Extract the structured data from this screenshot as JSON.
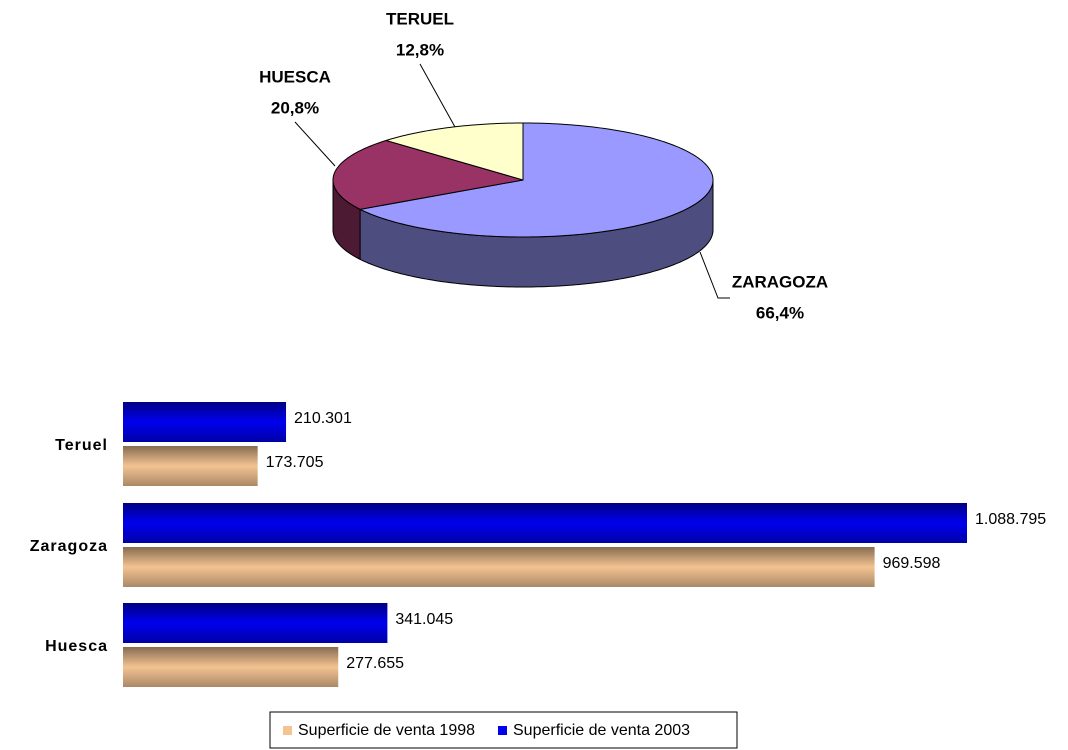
{
  "chart_data": [
    {
      "type": "pie",
      "categories": [
        "ZARAGOZA",
        "HUESCA",
        "TERUEL"
      ],
      "values": [
        66.4,
        20.8,
        12.8
      ],
      "value_labels": [
        "66,4%",
        "20,8%",
        "12,8%"
      ],
      "colors": [
        "#9999ff",
        "#993366",
        "#ffffcc"
      ]
    },
    {
      "type": "hbar",
      "categories": [
        "Teruel",
        "Zaragoza",
        "Huesca"
      ],
      "series": [
        {
          "name": "Superficie de venta 1998",
          "color": "#f3c392",
          "values": [
            173705,
            969598,
            277655
          ],
          "value_labels": [
            "173.705",
            "969.598",
            "277.655"
          ]
        },
        {
          "name": "Superficie de venta 2003",
          "color": "#0000ee",
          "values": [
            210301,
            1088795,
            341045
          ],
          "value_labels": [
            "210.301",
            "1.088.795",
            "341.045"
          ]
        }
      ],
      "legend": "bottom"
    }
  ]
}
